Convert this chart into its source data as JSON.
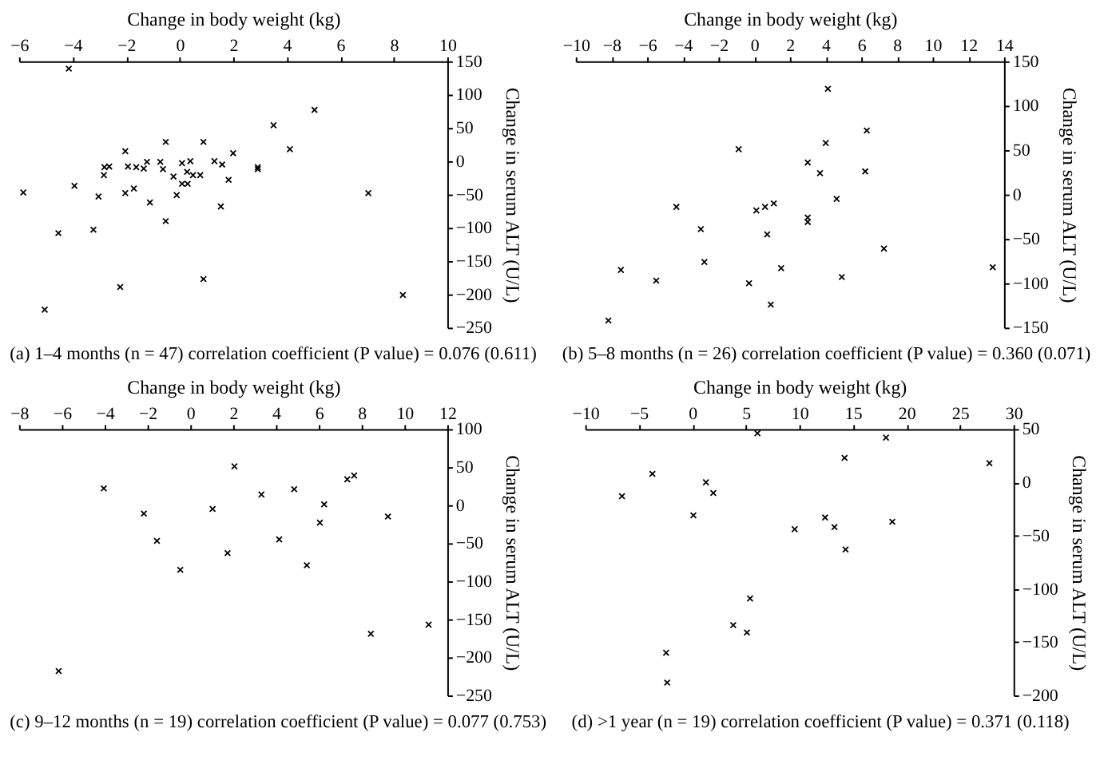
{
  "chart_data": [
    {
      "type": "scatter",
      "xlabel": "Change in body weight (kg)",
      "ylabel": "Change in serum ALT (U/L)",
      "annotations": [
        "(a) 1–4 months (n = 47) correlation coefficient (P value) = 0.076 (0.611)"
      ],
      "marker": "cross",
      "grid": false,
      "xlim": [
        -6,
        10
      ],
      "xticks": [
        -6,
        -4,
        -2,
        0,
        2,
        4,
        6,
        8,
        10
      ],
      "ylim": [
        -250,
        150
      ],
      "yticks": [
        -250,
        -200,
        -150,
        -100,
        -50,
        0,
        50,
        100,
        150
      ],
      "series": [
        {
          "color": "#000000",
          "x": [
            -4.14,
            -5.84,
            -4.53,
            -5.04,
            -3.93,
            -3.22,
            -3.03,
            -2.83,
            -2.81,
            -2.63,
            -2.03,
            -2.03,
            -1.93,
            -1.71,
            -1.62,
            -1.34,
            -1.22,
            -1.11,
            -2.22,
            -0.72,
            -0.62,
            -0.52,
            -0.52,
            -0.23,
            -0.11,
            0.09,
            0.09,
            0.28,
            0.3,
            0.4,
            0.5,
            0.77,
            0.89,
            0.89,
            1.3,
            1.59,
            1.54,
            1.83,
            2.0,
            2.92,
            2.92,
            3.51,
            4.12,
            5.04,
            7.05,
            8.34
          ],
          "values": [
            139,
            -47,
            -108,
            -223,
            -37,
            -103,
            -53,
            -21,
            -9,
            -8,
            15,
            -48,
            -8,
            -41,
            -9,
            -11,
            -1,
            -62,
            -189,
            -1,
            -12,
            29,
            -90,
            -23,
            -51,
            -3,
            -34,
            -16,
            -34,
            0,
            -21,
            -21,
            29,
            -177,
            0,
            -5,
            -68,
            -28,
            12,
            -9,
            -12,
            54,
            18,
            77,
            -48,
            -201
          ]
        }
      ]
    },
    {
      "type": "scatter",
      "xlabel": "Change in body weight (kg)",
      "ylabel": "Change in serum ALT (U/L)",
      "annotations": [
        "(b) 5–8 months (n = 26) correlation coefficient (P value) = 0.360 (0.071)"
      ],
      "marker": "cross",
      "grid": false,
      "xlim": [
        -10,
        14
      ],
      "xticks": [
        -10,
        -8,
        -6,
        -4,
        -2,
        0,
        2,
        4,
        6,
        8,
        10,
        12,
        14
      ],
      "ylim": [
        -150,
        150
      ],
      "yticks": [
        -150,
        -100,
        -50,
        0,
        50,
        100,
        150
      ],
      "series": [
        {
          "color": "#000000",
          "x": [
            -8.17,
            -7.47,
            -5.49,
            -4.36,
            -2.99,
            -2.79,
            -0.87,
            -0.29,
            0.12,
            0.61,
            0.73,
            1.1,
            0.93,
            1.51,
            3.0,
            3.0,
            3.0,
            3.69,
            4.01,
            4.13,
            4.62,
            4.91,
            6.22,
            6.31,
            7.27,
            13.37
          ],
          "values": [
            -142,
            -85,
            -97,
            -14,
            -39,
            -76,
            51,
            -100,
            -18,
            -14,
            -45,
            -10,
            -124,
            -83,
            36,
            -26,
            -31,
            24,
            58,
            119,
            -5,
            -93,
            26,
            72,
            -61,
            -82
          ]
        }
      ]
    },
    {
      "type": "scatter",
      "xlabel": "Change in body weight (kg)",
      "ylabel": "Change in serum ALT (U/L)",
      "annotations": [
        "(c) 9–12 months (n = 19) correlation coefficient (P value) = 0.077 (0.753)"
      ],
      "marker": "cross",
      "grid": false,
      "xlim": [
        -8,
        12
      ],
      "xticks": [
        -8,
        -6,
        -4,
        -2,
        0,
        2,
        4,
        6,
        8,
        10,
        12
      ],
      "ylim": [
        -250,
        100
      ],
      "yticks": [
        -250,
        -200,
        -150,
        -100,
        -50,
        0,
        50,
        100
      ],
      "series": [
        {
          "color": "#000000",
          "x": [
            -6.15,
            -4.04,
            -2.17,
            -1.56,
            -0.47,
            1.04,
            1.74,
            2.06,
            3.32,
            4.15,
            4.85,
            5.44,
            6.05,
            6.25,
            7.33,
            7.65,
            8.43,
            9.23,
            11.13
          ],
          "values": [
            -218,
            22,
            -11,
            -47,
            -85,
            -5,
            -63,
            51,
            14,
            -45,
            21,
            -79,
            -23,
            1,
            34,
            39,
            -169,
            -15,
            -157
          ]
        }
      ]
    },
    {
      "type": "scatter",
      "xlabel": "Change in body weight (kg)",
      "ylabel": "Change in serum ALT (U/L)",
      "annotations": [
        "(d) >1 year (n = 19) correlation coefficient (P value) = 0.371 (0.118)"
      ],
      "marker": "cross",
      "grid": false,
      "xlim": [
        -10,
        30
      ],
      "xticks": [
        -10,
        -5,
        0,
        5,
        10,
        15,
        20,
        25,
        30
      ],
      "ylim": [
        -200,
        50
      ],
      "yticks": [
        -200,
        -150,
        -100,
        -50,
        0,
        50
      ],
      "series": [
        {
          "color": "#000000",
          "x": [
            6.08,
            -6.57,
            -3.73,
            -2.45,
            -2.35,
            0.1,
            1.27,
            1.96,
            3.82,
            5.1,
            5.39,
            9.56,
            12.4,
            13.28,
            14.22,
            14.31,
            18.09,
            18.68,
            27.75
          ],
          "values": [
            46,
            -13,
            8,
            -160,
            -188,
            -31,
            0,
            -10,
            -134,
            -141,
            -109,
            -44,
            -33,
            -42,
            23,
            -63,
            42,
            -37,
            18
          ]
        }
      ]
    }
  ]
}
